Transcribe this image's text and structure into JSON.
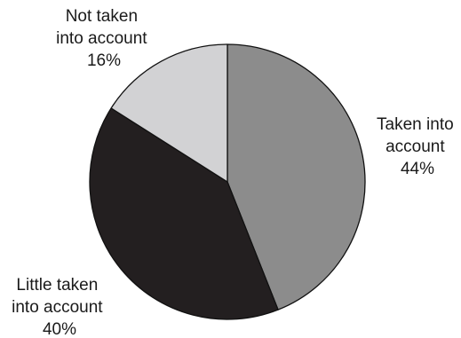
{
  "chart_data": {
    "type": "pie",
    "title": "",
    "slices": [
      {
        "label_lines": [
          "Taken into",
          "account"
        ],
        "value_label": "44%",
        "value": 44,
        "color": "#8c8c8c"
      },
      {
        "label_lines": [
          "Little taken",
          "into account"
        ],
        "value_label": "40%",
        "value": 40,
        "color": "#231f20"
      },
      {
        "label_lines": [
          "Not taken",
          "into account"
        ],
        "value_label": "16%",
        "value": 16,
        "color": "#d2d2d4"
      }
    ],
    "start": "12 o'clock",
    "direction": "clockwise",
    "outline_color": "#111111"
  }
}
